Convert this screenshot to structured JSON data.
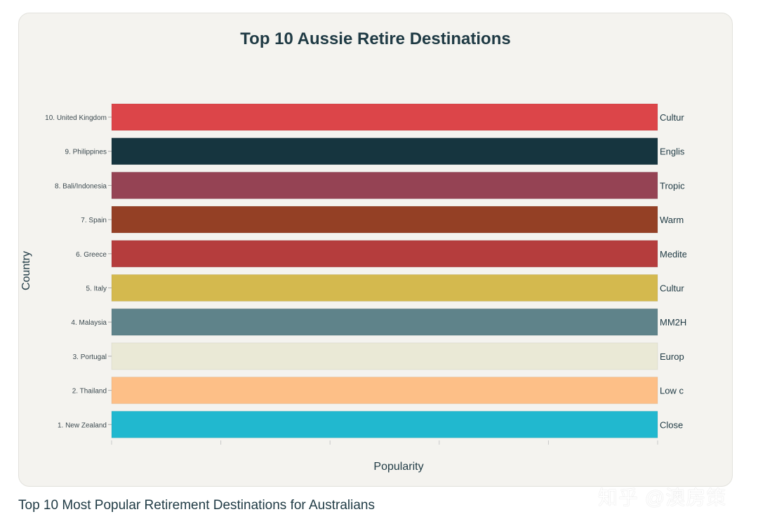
{
  "caption": "Top 10 Most Popular Retirement Destinations for Australians",
  "watermark": "知乎 @澳房策",
  "chart_data": {
    "type": "bar",
    "orientation": "horizontal",
    "title": "Top 10 Aussie Retire Destinations",
    "xlabel": "Popularity",
    "ylabel": "Country",
    "xlim": [
      0,
      1
    ],
    "grid": false,
    "legend": "none",
    "categories": [
      "10. United Kingdom",
      "9. Philippines",
      "8. Bali/Indonesia",
      "7. Spain",
      "6. Greece",
      "5. Italy",
      "4. Malaysia",
      "3. Portugal",
      "2. Thailand",
      "1. New Zealand"
    ],
    "values": [
      1,
      1,
      1,
      1,
      1,
      1,
      1,
      1,
      1,
      1
    ],
    "bar_labels": [
      "Cultur",
      "Englis",
      "Tropic",
      "Warm",
      "Medite",
      "Cultur",
      "MM2H",
      "Europ",
      "Low c",
      "Close"
    ],
    "colors": [
      "#dc4549",
      "#16353f",
      "#954354",
      "#944025",
      "#b53d3d",
      "#d4b94e",
      "#5f838a",
      "#eae9d6",
      "#fdbf87",
      "#21b8cf"
    ]
  }
}
